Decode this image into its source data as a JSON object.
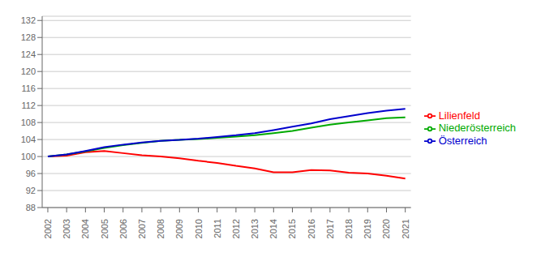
{
  "chart_data": {
    "type": "line",
    "x": [
      2002,
      2003,
      2004,
      2005,
      2006,
      2007,
      2008,
      2009,
      2010,
      2011,
      2012,
      2013,
      2014,
      2015,
      2016,
      2017,
      2018,
      2019,
      2020,
      2021
    ],
    "series": [
      {
        "name": "Lilienfeld",
        "color": "#ff0000",
        "values": [
          100.0,
          100.2,
          101.0,
          101.3,
          100.8,
          100.3,
          100.0,
          99.6,
          99.0,
          98.5,
          97.8,
          97.2,
          96.3,
          96.3,
          96.8,
          96.7,
          96.2,
          96.0,
          95.5,
          94.8
        ]
      },
      {
        "name": "Niederösterreich",
        "color": "#00aa00",
        "values": [
          100.0,
          100.5,
          101.2,
          102.0,
          102.7,
          103.2,
          103.7,
          103.9,
          104.1,
          104.4,
          104.7,
          105.0,
          105.5,
          106.0,
          106.8,
          107.5,
          108.0,
          108.5,
          109.0,
          109.2
        ]
      },
      {
        "name": "Österreich",
        "color": "#0000cd",
        "values": [
          100.0,
          100.5,
          101.3,
          102.2,
          102.8,
          103.3,
          103.7,
          103.9,
          104.2,
          104.6,
          105.0,
          105.5,
          106.2,
          107.0,
          107.8,
          108.8,
          109.5,
          110.2,
          110.8,
          111.2
        ]
      }
    ],
    "xlim": [
      2001.7,
      2021.3
    ],
    "xticks": [
      2002,
      2003,
      2004,
      2005,
      2006,
      2007,
      2008,
      2009,
      2010,
      2011,
      2012,
      2013,
      2014,
      2015,
      2016,
      2017,
      2018,
      2019,
      2020,
      2021
    ],
    "ylim": [
      88,
      133
    ],
    "yticks": [
      88,
      92,
      96,
      100,
      104,
      108,
      112,
      116,
      120,
      124,
      128,
      132
    ],
    "grid": true,
    "legend": "right"
  }
}
